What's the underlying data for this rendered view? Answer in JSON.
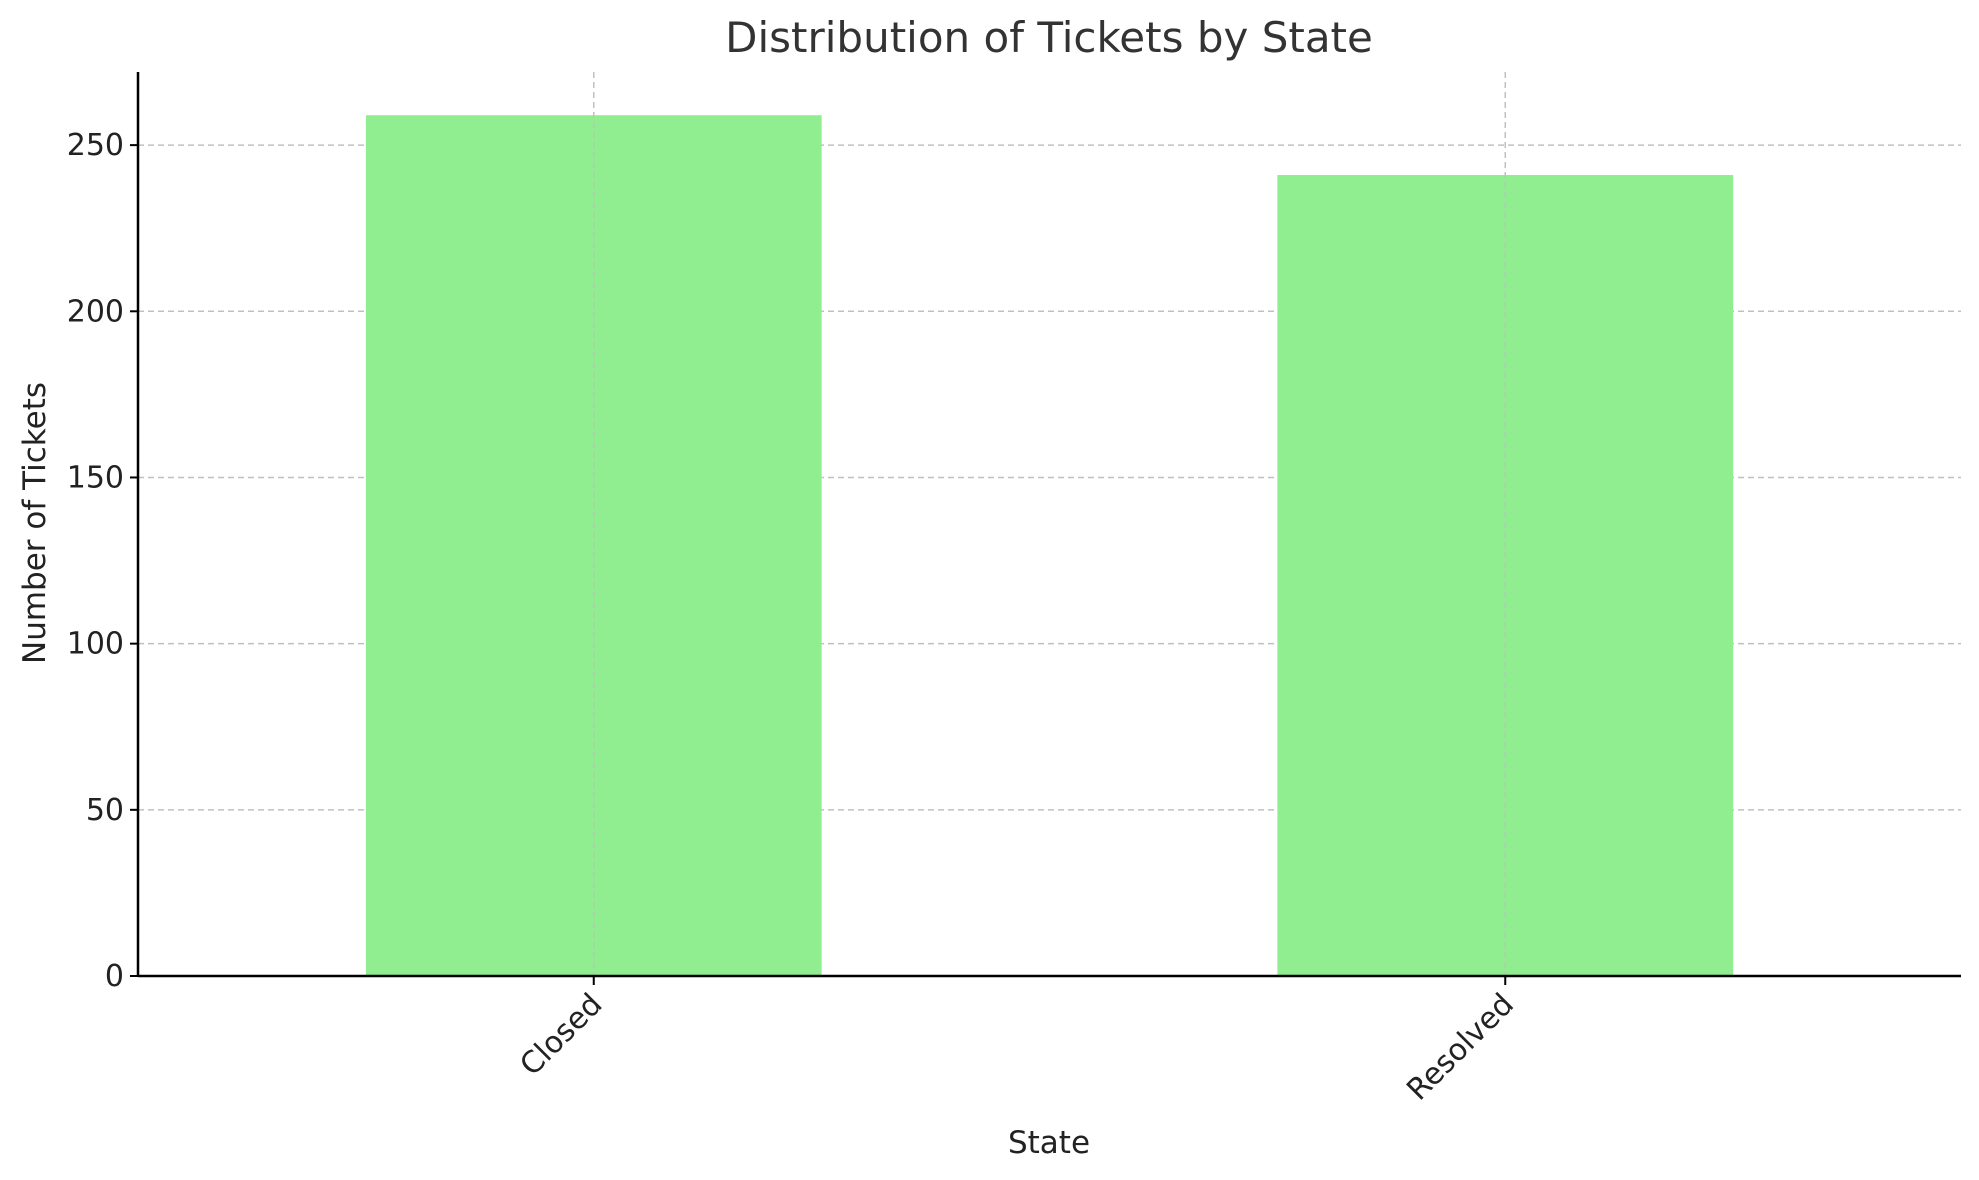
{
  "chart_data": {
    "type": "bar",
    "title": "Distribution of Tickets by State",
    "xlabel": "State",
    "ylabel": "Number of Tickets",
    "categories": [
      "Closed",
      "Resolved"
    ],
    "values": [
      259,
      241
    ],
    "ylim": [
      0,
      272
    ],
    "yticks": [
      0,
      50,
      100,
      150,
      200,
      250
    ],
    "grid": true,
    "bar_color": "#90ee90",
    "xtick_rotation": -45
  }
}
